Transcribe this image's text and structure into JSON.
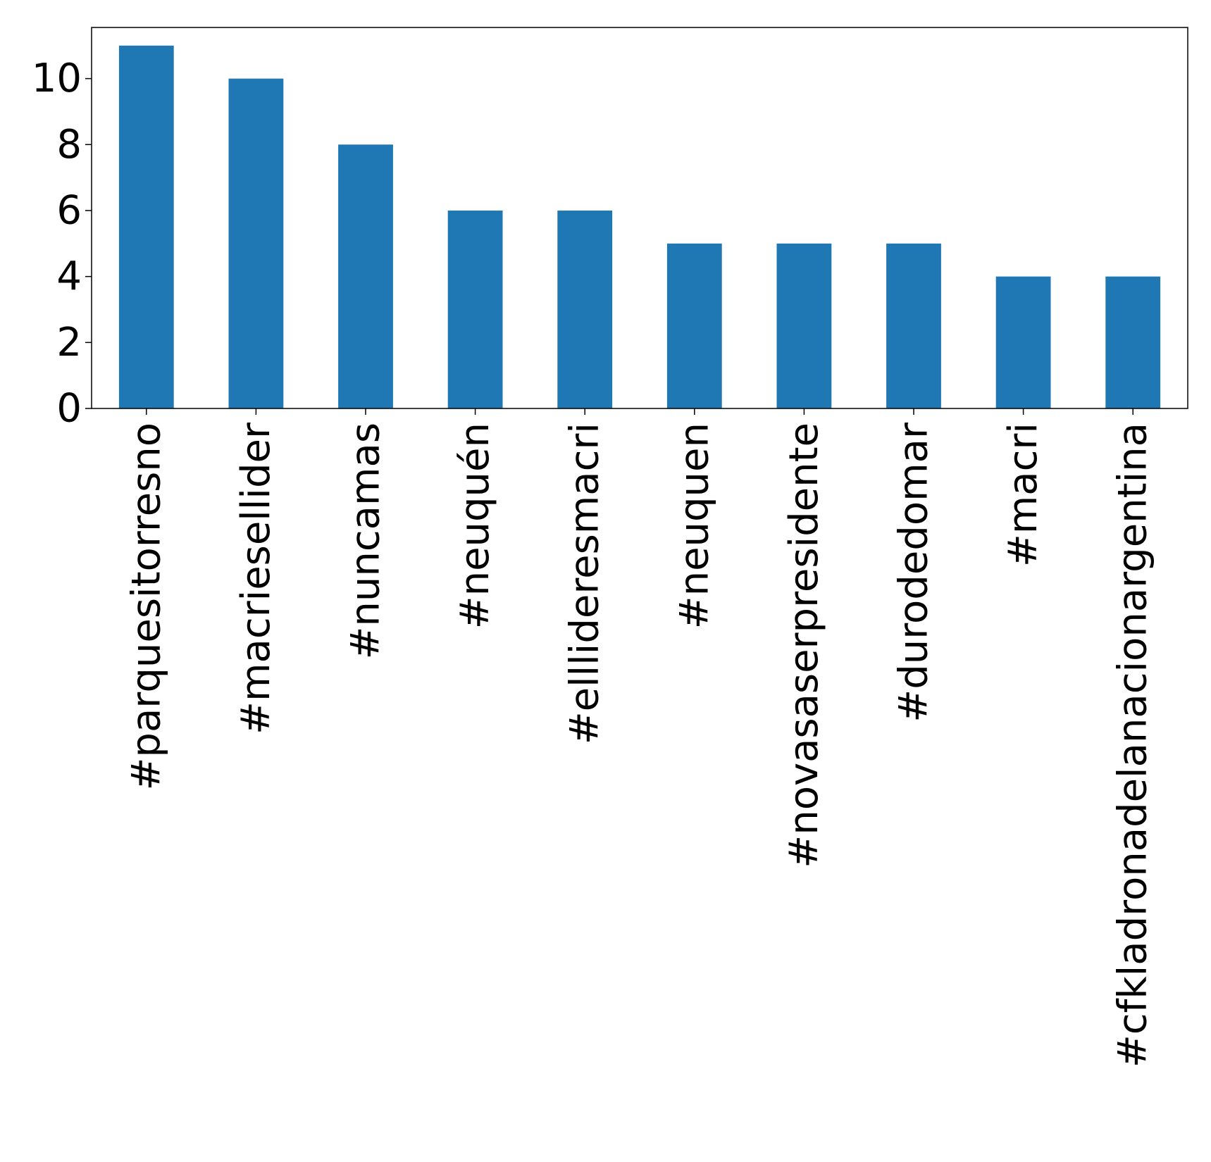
{
  "chart_data": {
    "type": "bar",
    "title": "",
    "xlabel": "",
    "ylabel": "",
    "categories": [
      "#parquesitorresno",
      "#macriesellider",
      "#nuncamas",
      "#neuquén",
      "#elllideresmacri",
      "#neuquen",
      "#novasaserpresidente",
      "#durodedomar",
      "#macri",
      "#cfkladronadelanacionargentina"
    ],
    "values": [
      11,
      10,
      8,
      6,
      6,
      5,
      5,
      5,
      4,
      4
    ],
    "ylim": [
      0,
      11.55
    ],
    "yticks": [
      "0",
      "2",
      "4",
      "6",
      "8",
      "10"
    ],
    "grid": false,
    "legend": "none",
    "bar_color": "#1f77b4"
  }
}
